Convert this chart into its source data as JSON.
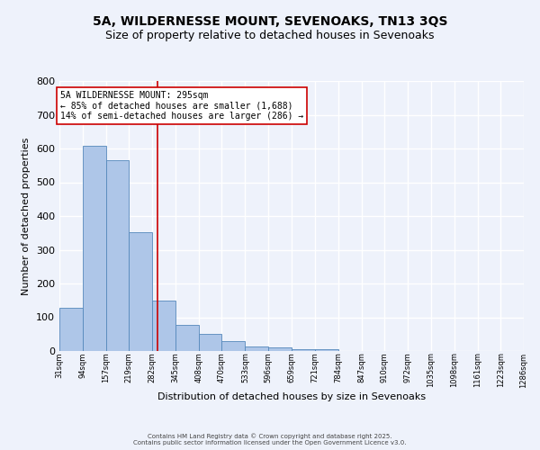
{
  "title": "5A, WILDERNESSE MOUNT, SEVENOAKS, TN13 3QS",
  "subtitle": "Size of property relative to detached houses in Sevenoaks",
  "xlabel": "Distribution of detached houses by size in Sevenoaks",
  "ylabel": "Number of detached properties",
  "bin_edges": [
    31,
    94,
    157,
    219,
    282,
    345,
    408,
    470,
    533,
    596,
    659,
    721,
    784,
    847,
    910,
    972,
    1035,
    1098,
    1161,
    1223,
    1286
  ],
  "bar_heights": [
    128,
    608,
    565,
    352,
    150,
    78,
    52,
    30,
    13,
    11,
    6,
    5,
    0,
    0,
    0,
    0,
    0,
    0,
    0,
    0
  ],
  "bar_color": "#aec6e8",
  "bar_edge_color": "#5588bb",
  "ylim": [
    0,
    800
  ],
  "yticks": [
    0,
    100,
    200,
    300,
    400,
    500,
    600,
    700,
    800
  ],
  "property_size": 295,
  "red_line_color": "#cc0000",
  "annotation_line1": "5A WILDERNESSE MOUNT: 295sqm",
  "annotation_line2": "← 85% of detached houses are smaller (1,688)",
  "annotation_line3": "14% of semi-detached houses are larger (286) →",
  "annotation_box_color": "#ffffff",
  "annotation_border_color": "#cc0000",
  "background_color": "#eef2fb",
  "grid_color": "#ffffff",
  "footer_text1": "Contains HM Land Registry data © Crown copyright and database right 2025.",
  "footer_text2": "Contains public sector information licensed under the Open Government Licence v3.0.",
  "title_fontsize": 10,
  "subtitle_fontsize": 9,
  "ylabel_fontsize": 8,
  "xlabel_fontsize": 8,
  "ytick_fontsize": 8,
  "xtick_fontsize": 6,
  "annotation_fontsize": 7,
  "footer_fontsize": 5
}
